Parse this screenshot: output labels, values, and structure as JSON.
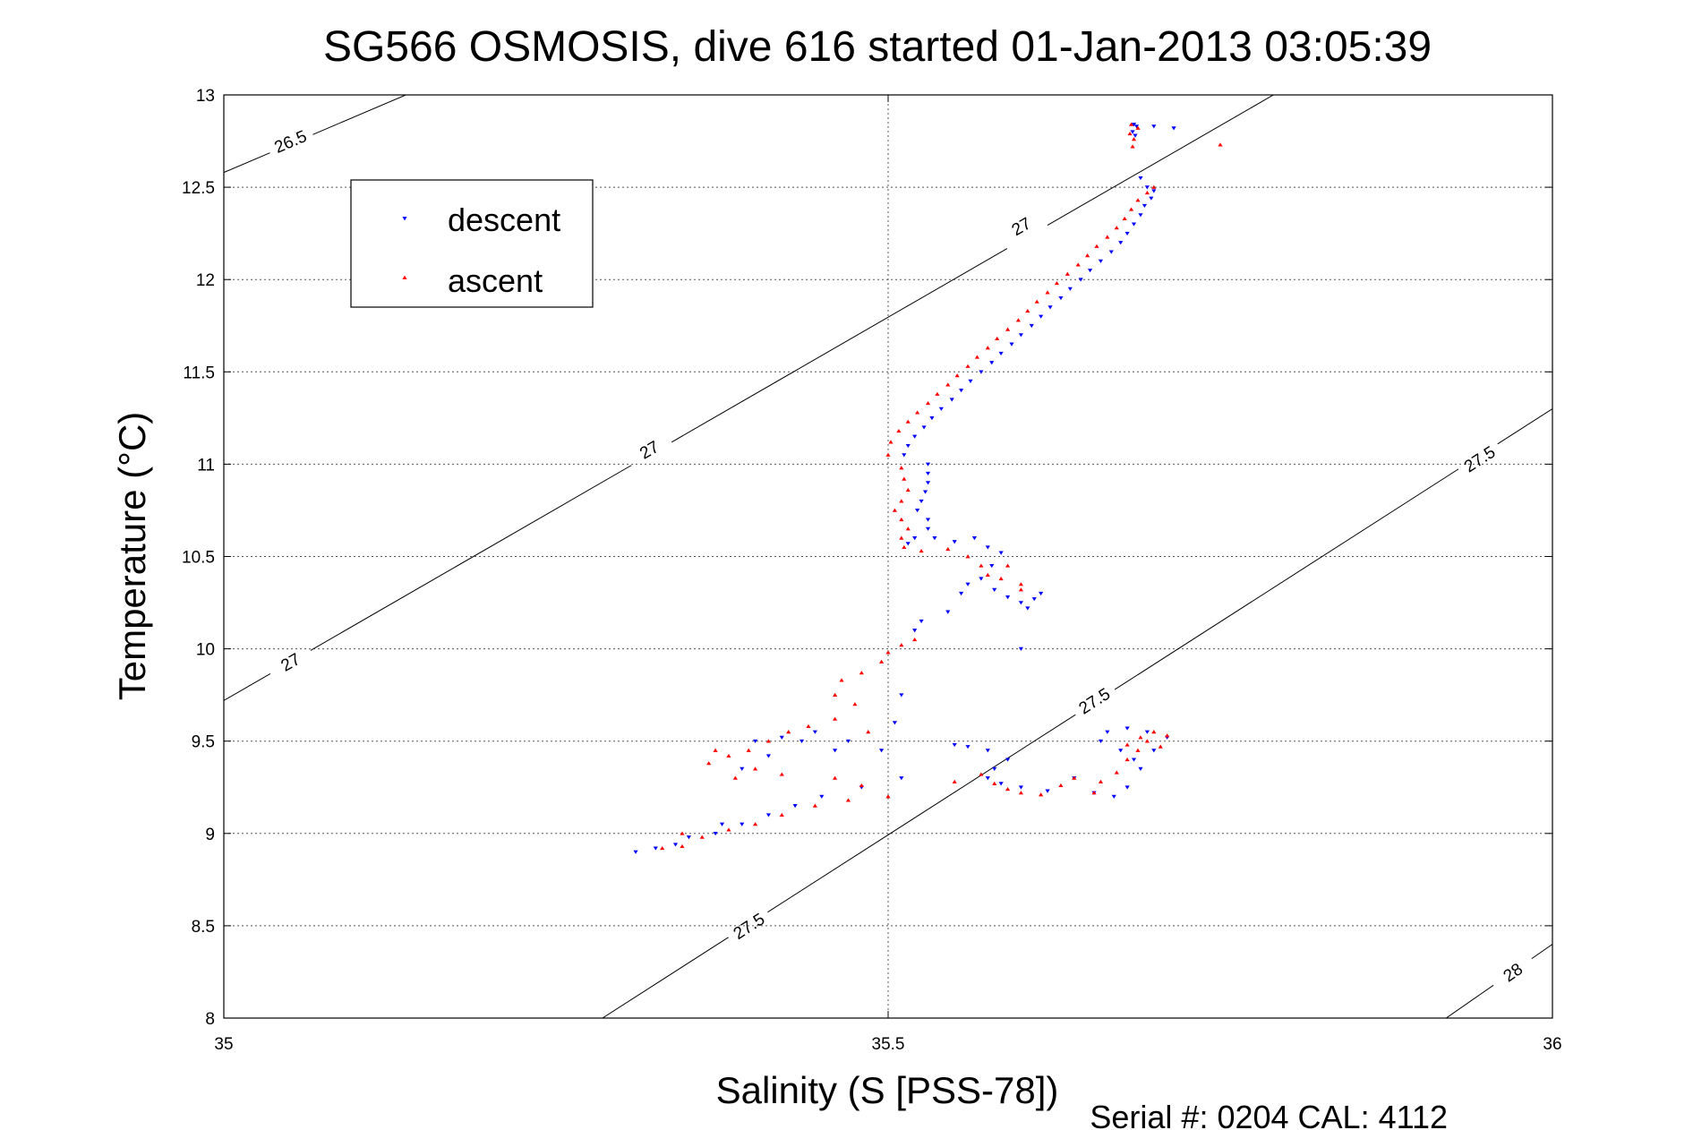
{
  "chart_data": {
    "type": "scatter",
    "title": "SG566 OSMOSIS, dive 616 started 01-Jan-2013 03:05:39",
    "xlabel": "Salinity (S [PSS-78])",
    "ylabel": "Temperature (°C)",
    "xlim": [
      35,
      36
    ],
    "ylim": [
      8,
      13
    ],
    "xticks": [
      {
        "value": 35,
        "label": "35"
      },
      {
        "value": 35.5,
        "label": "35.5"
      },
      {
        "value": 36,
        "label": "36"
      }
    ],
    "yticks": [
      {
        "value": 8,
        "label": "8"
      },
      {
        "value": 8.5,
        "label": "8.5"
      },
      {
        "value": 9,
        "label": "9"
      },
      {
        "value": 9.5,
        "label": "9.5"
      },
      {
        "value": 10,
        "label": "10"
      },
      {
        "value": 10.5,
        "label": "10.5"
      },
      {
        "value": 11,
        "label": "11"
      },
      {
        "value": 11.5,
        "label": "11.5"
      },
      {
        "value": 12,
        "label": "12"
      },
      {
        "value": 12.5,
        "label": "12.5"
      },
      {
        "value": 13,
        "label": "13"
      }
    ],
    "grid": true,
    "legend_position": "top-left",
    "density_contours": [
      {
        "level": "26.5",
        "points": [
          [
            35.0,
            12.58
          ],
          [
            35.137,
            13.0
          ]
        ],
        "labels": [
          {
            "x": 35.05,
            "y": 12.75
          }
        ]
      },
      {
        "level": "27",
        "points": [
          [
            35.0,
            9.72
          ],
          [
            35.79,
            13.0
          ]
        ],
        "labels": [
          {
            "x": 35.05,
            "y": 9.93
          },
          {
            "x": 35.32,
            "y": 11.08
          },
          {
            "x": 35.6,
            "y": 12.29
          }
        ]
      },
      {
        "level": "27.5",
        "points": [
          [
            35.285,
            8.0
          ],
          [
            36.0,
            11.3
          ]
        ],
        "labels": [
          {
            "x": 35.395,
            "y": 8.5
          },
          {
            "x": 35.655,
            "y": 9.72
          },
          {
            "x": 35.945,
            "y": 11.03
          }
        ]
      },
      {
        "level": "28",
        "points": [
          [
            35.92,
            8.0
          ],
          [
            36.0,
            8.4
          ]
        ],
        "labels": [
          {
            "x": 35.97,
            "y": 8.25
          }
        ]
      }
    ],
    "series": [
      {
        "name": "descent",
        "color": "#0000ff",
        "marker": "triangle-down",
        "points": [
          [
            35.685,
            12.84
          ],
          [
            35.687,
            12.83
          ],
          [
            35.684,
            12.8
          ],
          [
            35.686,
            12.78
          ],
          [
            35.7,
            12.83
          ],
          [
            35.715,
            12.82
          ],
          [
            35.69,
            12.55
          ],
          [
            35.695,
            12.5
          ],
          [
            35.7,
            12.48
          ],
          [
            35.698,
            12.44
          ],
          [
            35.693,
            12.4
          ],
          [
            35.69,
            12.35
          ],
          [
            35.685,
            12.3
          ],
          [
            35.68,
            12.25
          ],
          [
            35.675,
            12.2
          ],
          [
            35.668,
            12.15
          ],
          [
            35.66,
            12.1
          ],
          [
            35.652,
            12.05
          ],
          [
            35.645,
            12.0
          ],
          [
            35.637,
            11.95
          ],
          [
            35.63,
            11.9
          ],
          [
            35.622,
            11.85
          ],
          [
            35.615,
            11.8
          ],
          [
            35.608,
            11.75
          ],
          [
            35.6,
            11.7
          ],
          [
            35.593,
            11.65
          ],
          [
            35.585,
            11.6
          ],
          [
            35.578,
            11.55
          ],
          [
            35.57,
            11.5
          ],
          [
            35.562,
            11.45
          ],
          [
            35.555,
            11.4
          ],
          [
            35.548,
            11.35
          ],
          [
            35.54,
            11.3
          ],
          [
            35.533,
            11.25
          ],
          [
            35.527,
            11.2
          ],
          [
            35.52,
            11.15
          ],
          [
            35.515,
            11.1
          ],
          [
            35.512,
            11.05
          ],
          [
            35.53,
            11.0
          ],
          [
            35.53,
            10.95
          ],
          [
            35.53,
            10.9
          ],
          [
            35.528,
            10.85
          ],
          [
            35.525,
            10.8
          ],
          [
            35.522,
            10.75
          ],
          [
            35.53,
            10.7
          ],
          [
            35.53,
            10.65
          ],
          [
            35.52,
            10.6
          ],
          [
            35.515,
            10.57
          ],
          [
            35.535,
            10.6
          ],
          [
            35.55,
            10.58
          ],
          [
            35.565,
            10.6
          ],
          [
            35.575,
            10.55
          ],
          [
            35.585,
            10.52
          ],
          [
            35.578,
            10.45
          ],
          [
            35.57,
            10.38
          ],
          [
            35.58,
            10.32
          ],
          [
            35.59,
            10.28
          ],
          [
            35.6,
            10.25
          ],
          [
            35.605,
            10.22
          ],
          [
            35.61,
            10.27
          ],
          [
            35.615,
            10.3
          ],
          [
            35.56,
            10.35
          ],
          [
            35.555,
            10.3
          ],
          [
            35.545,
            10.2
          ],
          [
            35.525,
            10.15
          ],
          [
            35.52,
            10.1
          ],
          [
            35.6,
            10.0
          ],
          [
            35.51,
            9.75
          ],
          [
            35.505,
            9.6
          ],
          [
            35.495,
            9.45
          ],
          [
            35.47,
            9.5
          ],
          [
            35.46,
            9.45
          ],
          [
            35.445,
            9.55
          ],
          [
            35.435,
            9.5
          ],
          [
            35.42,
            9.52
          ],
          [
            35.41,
            9.42
          ],
          [
            35.4,
            9.5
          ],
          [
            35.39,
            9.35
          ],
          [
            35.51,
            9.3
          ],
          [
            35.48,
            9.25
          ],
          [
            35.45,
            9.2
          ],
          [
            35.43,
            9.15
          ],
          [
            35.41,
            9.1
          ],
          [
            35.39,
            9.05
          ],
          [
            35.37,
            9.0
          ],
          [
            35.35,
            8.98
          ],
          [
            35.34,
            8.94
          ],
          [
            35.325,
            8.92
          ],
          [
            35.31,
            8.9
          ],
          [
            35.375,
            9.05
          ],
          [
            35.55,
            9.48
          ],
          [
            35.56,
            9.47
          ],
          [
            35.575,
            9.45
          ],
          [
            35.59,
            9.4
          ],
          [
            35.58,
            9.35
          ],
          [
            35.575,
            9.3
          ],
          [
            35.585,
            9.27
          ],
          [
            35.6,
            9.25
          ],
          [
            35.62,
            9.23
          ],
          [
            35.64,
            9.3
          ],
          [
            35.655,
            9.22
          ],
          [
            35.67,
            9.2
          ],
          [
            35.68,
            9.25
          ],
          [
            35.69,
            9.35
          ],
          [
            35.7,
            9.45
          ],
          [
            35.71,
            9.52
          ],
          [
            35.695,
            9.55
          ],
          [
            35.68,
            9.57
          ],
          [
            35.665,
            9.55
          ],
          [
            35.66,
            9.5
          ],
          [
            35.675,
            9.45
          ],
          [
            35.685,
            9.4
          ]
        ]
      },
      {
        "name": "ascent",
        "color": "#ff0000",
        "marker": "triangle-up",
        "points": [
          [
            35.683,
            12.84
          ],
          [
            35.688,
            12.82
          ],
          [
            35.682,
            12.79
          ],
          [
            35.685,
            12.76
          ],
          [
            35.684,
            12.72
          ],
          [
            35.75,
            12.73
          ],
          [
            35.7,
            12.5
          ],
          [
            35.695,
            12.47
          ],
          [
            35.688,
            12.43
          ],
          [
            35.683,
            12.38
          ],
          [
            35.678,
            12.33
          ],
          [
            35.672,
            12.28
          ],
          [
            35.665,
            12.23
          ],
          [
            35.657,
            12.18
          ],
          [
            35.65,
            12.13
          ],
          [
            35.643,
            12.08
          ],
          [
            35.635,
            12.03
          ],
          [
            35.627,
            11.98
          ],
          [
            35.62,
            11.93
          ],
          [
            35.612,
            11.88
          ],
          [
            35.605,
            11.83
          ],
          [
            35.598,
            11.78
          ],
          [
            35.59,
            11.73
          ],
          [
            35.582,
            11.68
          ],
          [
            35.575,
            11.63
          ],
          [
            35.567,
            11.58
          ],
          [
            35.56,
            11.53
          ],
          [
            35.552,
            11.48
          ],
          [
            35.545,
            11.43
          ],
          [
            35.537,
            11.38
          ],
          [
            35.53,
            11.33
          ],
          [
            35.522,
            11.28
          ],
          [
            35.515,
            11.23
          ],
          [
            35.508,
            11.18
          ],
          [
            35.502,
            11.12
          ],
          [
            35.5,
            11.05
          ],
          [
            35.51,
            10.98
          ],
          [
            35.512,
            10.92
          ],
          [
            35.515,
            10.86
          ],
          [
            35.51,
            10.8
          ],
          [
            35.505,
            10.75
          ],
          [
            35.51,
            10.7
          ],
          [
            35.515,
            10.65
          ],
          [
            35.51,
            10.6
          ],
          [
            35.512,
            10.55
          ],
          [
            35.525,
            10.53
          ],
          [
            35.545,
            10.54
          ],
          [
            35.56,
            10.5
          ],
          [
            35.57,
            10.45
          ],
          [
            35.575,
            10.4
          ],
          [
            35.585,
            10.38
          ],
          [
            35.6,
            10.35
          ],
          [
            35.6,
            10.32
          ],
          [
            35.59,
            10.45
          ],
          [
            35.52,
            10.05
          ],
          [
            35.51,
            10.02
          ],
          [
            35.5,
            9.98
          ],
          [
            35.495,
            9.93
          ],
          [
            35.48,
            9.87
          ],
          [
            35.465,
            9.83
          ],
          [
            35.46,
            9.75
          ],
          [
            35.475,
            9.7
          ],
          [
            35.485,
            9.55
          ],
          [
            35.46,
            9.62
          ],
          [
            35.44,
            9.58
          ],
          [
            35.425,
            9.55
          ],
          [
            35.41,
            9.5
          ],
          [
            35.395,
            9.45
          ],
          [
            35.38,
            9.42
          ],
          [
            35.37,
            9.45
          ],
          [
            35.365,
            9.38
          ],
          [
            35.385,
            9.3
          ],
          [
            35.4,
            9.35
          ],
          [
            35.42,
            9.32
          ],
          [
            35.46,
            9.3
          ],
          [
            35.48,
            9.26
          ],
          [
            35.5,
            9.2
          ],
          [
            35.47,
            9.18
          ],
          [
            35.445,
            9.15
          ],
          [
            35.42,
            9.1
          ],
          [
            35.4,
            9.05
          ],
          [
            35.38,
            9.02
          ],
          [
            35.36,
            8.98
          ],
          [
            35.345,
            8.93
          ],
          [
            35.33,
            8.92
          ],
          [
            35.345,
            9.0
          ],
          [
            35.55,
            9.28
          ],
          [
            35.57,
            9.32
          ],
          [
            35.58,
            9.27
          ],
          [
            35.59,
            9.24
          ],
          [
            35.6,
            9.22
          ],
          [
            35.615,
            9.21
          ],
          [
            35.63,
            9.26
          ],
          [
            35.64,
            9.3
          ],
          [
            35.655,
            9.22
          ],
          [
            35.66,
            9.28
          ],
          [
            35.672,
            9.33
          ],
          [
            35.68,
            9.4
          ],
          [
            35.688,
            9.45
          ],
          [
            35.695,
            9.5
          ],
          [
            35.7,
            9.55
          ],
          [
            35.71,
            9.53
          ],
          [
            35.705,
            9.47
          ],
          [
            35.69,
            9.52
          ],
          [
            35.68,
            9.48
          ]
        ]
      }
    ],
    "annotations": [
      {
        "text": "Serial #: 0204  CAL: 4112",
        "position": "bottom-right"
      }
    ]
  }
}
